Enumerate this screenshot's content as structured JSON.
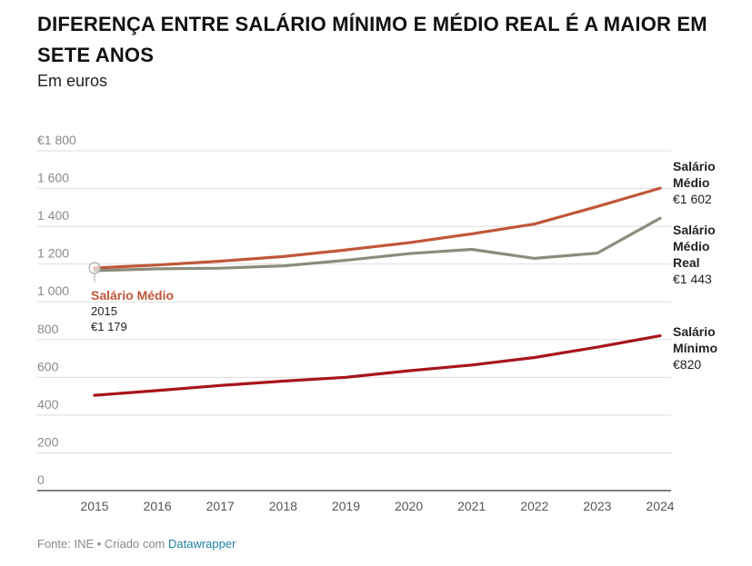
{
  "header": {
    "title": "DIFERENÇA ENTRE SALÁRIO MÍNIMO E MÉDIO REAL É A MAIOR EM SETE ANOS",
    "subtitle": "Em euros"
  },
  "footer": {
    "source": "Fonte: INE • Criado com ",
    "tool": "Datawrapper"
  },
  "colors": {
    "medio": "#c0573a",
    "medio_real": "#8a8c7c",
    "minimo": "#a8141c",
    "grid": "#dddddd",
    "axis": "#333333"
  },
  "chart_data": {
    "type": "line",
    "title": "DIFERENÇA ENTRE SALÁRIO MÍNIMO E MÉDIO REAL É A MAIOR EM SETE ANOS",
    "ylabel": "Em euros",
    "ylim": [
      0,
      1800
    ],
    "yticks": [
      {
        "value": 1800,
        "label": "€1 800"
      },
      {
        "value": 1600,
        "label": "1 600"
      },
      {
        "value": 1400,
        "label": "1 400"
      },
      {
        "value": 1200,
        "label": "1 200"
      },
      {
        "value": 1000,
        "label": "1 000"
      },
      {
        "value": 800,
        "label": "800"
      },
      {
        "value": 600,
        "label": "600"
      },
      {
        "value": 400,
        "label": "400"
      },
      {
        "value": 200,
        "label": "200"
      },
      {
        "value": 0,
        "label": "0"
      }
    ],
    "x": [
      "2015",
      "2016",
      "2017",
      "2018",
      "2019",
      "2020",
      "2021",
      "2022",
      "2023",
      "2024"
    ],
    "series": [
      {
        "key": "medio",
        "name": "Salário Médio",
        "label_lines": [
          "Salário",
          "Médio"
        ],
        "end_value_label": "€1 602",
        "values": [
          1179,
          1195,
          1215,
          1240,
          1275,
          1313,
          1360,
          1412,
          1505,
          1602
        ]
      },
      {
        "key": "medio_real",
        "name": "Salário Médio Real",
        "label_lines": [
          "Salário",
          "Médio",
          "Real"
        ],
        "end_value_label": "€1 443",
        "values": [
          1165,
          1175,
          1178,
          1190,
          1220,
          1255,
          1278,
          1230,
          1258,
          1443
        ]
      },
      {
        "key": "minimo",
        "name": "Salário Mínimo",
        "label_lines": [
          "Salário",
          "Mínimo"
        ],
        "end_value_label": "€820",
        "values": [
          505,
          530,
          557,
          580,
          600,
          635,
          665,
          705,
          760,
          820
        ]
      }
    ],
    "annotation": {
      "series": "Salário Médio",
      "name": "Salário Médio",
      "year": "2015",
      "value_label": "€1 179",
      "value": 1179
    }
  }
}
